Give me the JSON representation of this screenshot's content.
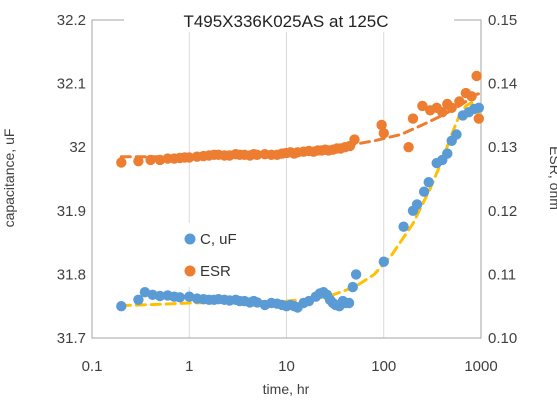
{
  "chart_data": {
    "type": "scatter",
    "title": "T495X336K025AS at 125C",
    "xlabel": "time, hr",
    "ylabel_left": "capacitance, uF",
    "ylabel_right": "ESR, ohm",
    "x_scale": "log",
    "xlim": [
      0.1,
      1000
    ],
    "ylim_left": [
      31.7,
      32.2
    ],
    "ylim_right": [
      0.1,
      0.15
    ],
    "x_ticks": [
      "0.1",
      "1",
      "10",
      "100",
      "1000"
    ],
    "y_left_ticks": [
      "31.7",
      "31.8",
      "31.9",
      "32",
      "32.1",
      "32.2"
    ],
    "y_right_ticks": [
      "0.10",
      "0.11",
      "0.12",
      "0.13",
      "0.14",
      "0.15"
    ],
    "grid": {
      "vertical": true,
      "horizontal": false
    },
    "legend_position": "center-left",
    "colors": {
      "C": "#5b9bd5",
      "ESR": "#ed7d31",
      "trend": "#ffc000",
      "grid": "#d9d9d9",
      "frame": "#a6a6a6"
    },
    "series": [
      {
        "name": "C, uF",
        "axis": "left",
        "points": [
          [
            0.2,
            31.75
          ],
          [
            0.3,
            31.76
          ],
          [
            0.35,
            31.772
          ],
          [
            0.42,
            31.768
          ],
          [
            0.5,
            31.766
          ],
          [
            0.6,
            31.767
          ],
          [
            0.7,
            31.765
          ],
          [
            0.8,
            31.764
          ],
          [
            1.0,
            31.765
          ],
          [
            1.2,
            31.762
          ],
          [
            1.4,
            31.761
          ],
          [
            1.6,
            31.76
          ],
          [
            1.8,
            31.76
          ],
          [
            2.0,
            31.761
          ],
          [
            2.3,
            31.76
          ],
          [
            2.6,
            31.759
          ],
          [
            3.0,
            31.76
          ],
          [
            3.3,
            31.758
          ],
          [
            3.7,
            31.758
          ],
          [
            4.2,
            31.756
          ],
          [
            4.6,
            31.758
          ],
          [
            5.0,
            31.756
          ],
          [
            6.0,
            31.752
          ],
          [
            7.0,
            31.755
          ],
          [
            8.0,
            31.754
          ],
          [
            9.0,
            31.752
          ],
          [
            10.0,
            31.75
          ],
          [
            11.0,
            31.752
          ],
          [
            12.0,
            31.75
          ],
          [
            13.0,
            31.748
          ],
          [
            15.0,
            31.755
          ],
          [
            17.0,
            31.758
          ],
          [
            20.0,
            31.765
          ],
          [
            22.0,
            31.77
          ],
          [
            24.0,
            31.772
          ],
          [
            26.0,
            31.768
          ],
          [
            28.0,
            31.76
          ],
          [
            30.0,
            31.755
          ],
          [
            32.0,
            31.752
          ],
          [
            35.0,
            31.75
          ],
          [
            38.0,
            31.758
          ],
          [
            41.0,
            31.755
          ],
          [
            44.0,
            31.755
          ],
          [
            48.0,
            31.78
          ],
          [
            52.0,
            31.8
          ],
          [
            100.0,
            31.82
          ],
          [
            160.0,
            31.875
          ],
          [
            200.0,
            31.9
          ],
          [
            220.0,
            31.91
          ],
          [
            260.0,
            31.93
          ],
          [
            290.0,
            31.945
          ],
          [
            350.0,
            31.975
          ],
          [
            400.0,
            31.98
          ],
          [
            450.0,
            31.99
          ],
          [
            500.0,
            32.01
          ],
          [
            560.0,
            32.02
          ],
          [
            650.0,
            32.05
          ],
          [
            750.0,
            32.055
          ],
          [
            850.0,
            32.06
          ],
          [
            950.0,
            32.062
          ]
        ]
      },
      {
        "name": "ESR",
        "axis": "right",
        "points": [
          [
            0.2,
            0.1276
          ],
          [
            0.3,
            0.1278
          ],
          [
            0.4,
            0.128
          ],
          [
            0.5,
            0.128
          ],
          [
            0.6,
            0.1282
          ],
          [
            0.7,
            0.1282
          ],
          [
            0.8,
            0.1283
          ],
          [
            0.9,
            0.1284
          ],
          [
            1.0,
            0.1284
          ],
          [
            1.2,
            0.1285
          ],
          [
            1.4,
            0.1286
          ],
          [
            1.6,
            0.1287
          ],
          [
            1.8,
            0.1288
          ],
          [
            2.0,
            0.1288
          ],
          [
            2.3,
            0.1287
          ],
          [
            2.6,
            0.1287
          ],
          [
            3.0,
            0.1289
          ],
          [
            3.3,
            0.1288
          ],
          [
            3.7,
            0.1288
          ],
          [
            4.2,
            0.1287
          ],
          [
            4.6,
            0.1289
          ],
          [
            5.0,
            0.1288
          ],
          [
            6.0,
            0.1289
          ],
          [
            7.0,
            0.1288
          ],
          [
            8.0,
            0.1288
          ],
          [
            9.0,
            0.129
          ],
          [
            10.0,
            0.1291
          ],
          [
            11.0,
            0.1292
          ],
          [
            12.0,
            0.129
          ],
          [
            13.0,
            0.1292
          ],
          [
            15.0,
            0.1293
          ],
          [
            17.0,
            0.1294
          ],
          [
            19.0,
            0.1293
          ],
          [
            21.0,
            0.1295
          ],
          [
            23.0,
            0.1295
          ],
          [
            25.0,
            0.1296
          ],
          [
            27.0,
            0.1295
          ],
          [
            30.0,
            0.1296
          ],
          [
            33.0,
            0.1298
          ],
          [
            36.0,
            0.1298
          ],
          [
            40.0,
            0.13
          ],
          [
            45.0,
            0.1302
          ],
          [
            50.0,
            0.1312
          ],
          [
            95.0,
            0.1335
          ],
          [
            100.0,
            0.1322
          ],
          [
            200.0,
            0.1345
          ],
          [
            250.0,
            0.1365
          ],
          [
            300.0,
            0.1358
          ],
          [
            350.0,
            0.1362
          ],
          [
            400.0,
            0.1355
          ],
          [
            450.0,
            0.1368
          ],
          [
            500.0,
            0.1362
          ],
          [
            600.0,
            0.1372
          ],
          [
            700.0,
            0.1385
          ],
          [
            800.0,
            0.138
          ],
          [
            900.0,
            0.1412
          ],
          [
            950.0,
            0.1345
          ],
          [
            180.0,
            0.13
          ]
        ]
      }
    ],
    "trendlines": [
      {
        "axis": "left",
        "style": "dashed",
        "points": [
          [
            0.2,
            31.751
          ],
          [
            0.5,
            31.753
          ],
          [
            1.0,
            31.755
          ],
          [
            2.0,
            31.756
          ],
          [
            5.0,
            31.757
          ],
          [
            10.0,
            31.758
          ],
          [
            20.0,
            31.762
          ],
          [
            30.0,
            31.768
          ],
          [
            50.0,
            31.78
          ],
          [
            80.0,
            31.8
          ],
          [
            120.0,
            31.83
          ],
          [
            200.0,
            31.88
          ],
          [
            300.0,
            31.935
          ],
          [
            400.0,
            31.98
          ],
          [
            500.0,
            32.02
          ],
          [
            600.0,
            32.05
          ],
          [
            700.0,
            32.065
          ],
          [
            800.0,
            32.07
          ],
          [
            900.0,
            32.06
          ],
          [
            1000.0,
            32.04
          ]
        ]
      },
      {
        "axis": "right",
        "style": "dashed",
        "points": [
          [
            0.2,
            0.1285
          ],
          [
            0.5,
            0.1285
          ],
          [
            1.0,
            0.1286
          ],
          [
            2.0,
            0.1287
          ],
          [
            5.0,
            0.1289
          ],
          [
            10.0,
            0.1292
          ],
          [
            20.0,
            0.1296
          ],
          [
            40.0,
            0.1302
          ],
          [
            80.0,
            0.131
          ],
          [
            150.0,
            0.132
          ],
          [
            250.0,
            0.1335
          ],
          [
            400.0,
            0.135
          ],
          [
            600.0,
            0.1365
          ],
          [
            800.0,
            0.1378
          ],
          [
            900.0,
            0.1383
          ],
          [
            1000.0,
            0.1385
          ]
        ]
      }
    ]
  }
}
